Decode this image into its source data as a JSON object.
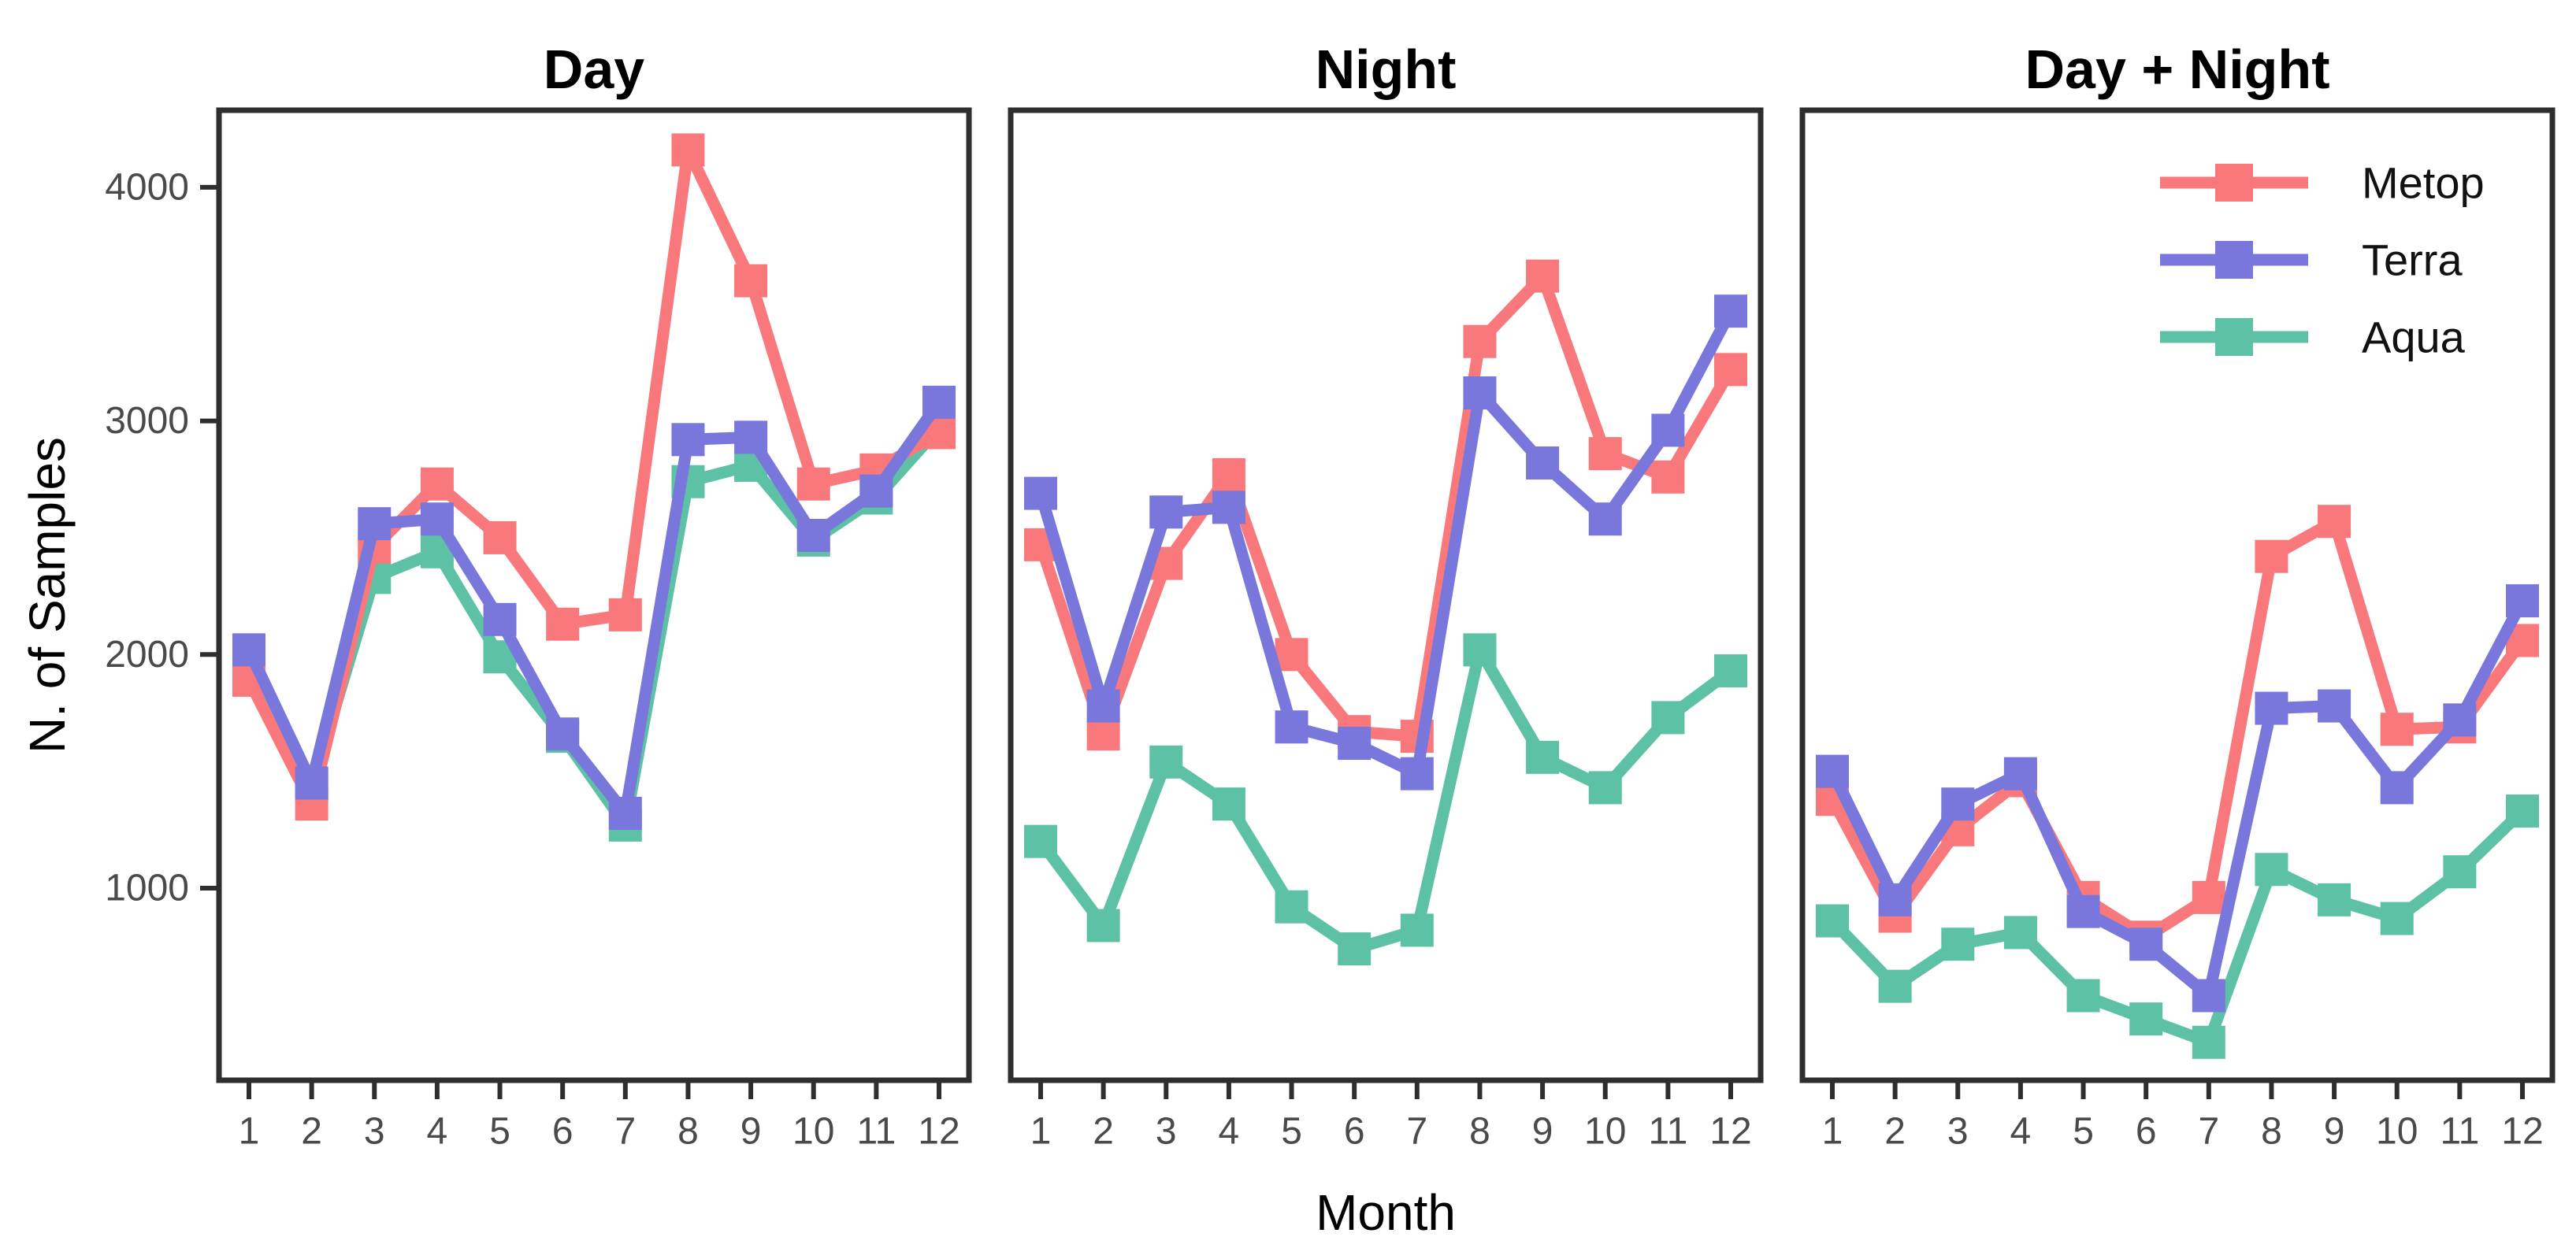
{
  "figure": {
    "background": "#FFFFFF",
    "ylabel": "N. of Samples",
    "xlabel": "Month",
    "panel_titles": [
      "Day",
      "Night",
      "Day + Night"
    ],
    "y_tick_labels": [
      "1000",
      "2000",
      "3000",
      "4000"
    ],
    "x_tick_labels": [
      "1",
      "2",
      "3",
      "4",
      "5",
      "6",
      "7",
      "8",
      "9",
      "10",
      "11",
      "12"
    ],
    "colors": {
      "metop": "#F8787C",
      "terra": "#7977DB",
      "aqua": "#5DC1A5",
      "frame": "#2E2E2E",
      "tick_text": "#4A4A4A",
      "label_text": "#000000"
    },
    "legend": {
      "position": "inside-top-right-of-third-panel",
      "items": [
        {
          "label": "Metop",
          "color": "#F8787C",
          "key_icon": "line-with-square-marker"
        },
        {
          "label": "Terra",
          "color": "#7977DB",
          "key_icon": "line-with-square-marker"
        },
        {
          "label": "Aqua",
          "color": "#5DC1A5",
          "key_icon": "line-with-square-marker"
        }
      ]
    }
  },
  "chart_data": [
    {
      "type": "line",
      "title": "Day",
      "xlabel": "Month",
      "ylabel": "N. of Samples",
      "x": [
        1,
        2,
        3,
        4,
        5,
        6,
        7,
        8,
        9,
        10,
        11,
        12
      ],
      "ylim": [
        180,
        4350
      ],
      "yticks": [
        1000,
        2000,
        3000,
        4000
      ],
      "grid": false,
      "marker": "square",
      "legend_position": "none",
      "draw_order": [
        "Aqua",
        "Metop",
        "Terra"
      ],
      "series": [
        {
          "name": "Metop",
          "color": "#F8787C",
          "values": [
            1890,
            1360,
            2460,
            2730,
            2500,
            2130,
            2170,
            4160,
            3600,
            2730,
            2790,
            2950
          ]
        },
        {
          "name": "Terra",
          "color": "#7977DB",
          "values": [
            2020,
            1450,
            2560,
            2580,
            2150,
            1660,
            1320,
            2920,
            2930,
            2510,
            2700,
            3080
          ]
        },
        {
          "name": "Aqua",
          "color": "#5DC1A5",
          "values": [
            1950,
            1440,
            2330,
            2440,
            1990,
            1650,
            1270,
            2740,
            2810,
            2490,
            2670,
            2970
          ]
        }
      ]
    },
    {
      "type": "line",
      "title": "Night",
      "xlabel": "Month",
      "ylabel": "N. of Samples",
      "x": [
        1,
        2,
        3,
        4,
        5,
        6,
        7,
        8,
        9,
        10,
        11,
        12
      ],
      "ylim": [
        180,
        4350
      ],
      "yticks": [
        1000,
        2000,
        3000,
        4000
      ],
      "grid": false,
      "marker": "square",
      "legend_position": "none",
      "draw_order": [
        "Aqua",
        "Metop",
        "Terra"
      ],
      "series": [
        {
          "name": "Metop",
          "color": "#F8787C",
          "values": [
            2470,
            1660,
            2390,
            2770,
            2000,
            1670,
            1650,
            3340,
            3620,
            2860,
            2760,
            3220
          ]
        },
        {
          "name": "Terra",
          "color": "#7977DB",
          "values": [
            2690,
            1780,
            2610,
            2630,
            1690,
            1620,
            1490,
            3120,
            2820,
            2580,
            2960,
            3470
          ]
        },
        {
          "name": "Aqua",
          "color": "#5DC1A5",
          "values": [
            1200,
            840,
            1540,
            1360,
            920,
            740,
            820,
            2020,
            1560,
            1430,
            1730,
            1930
          ]
        }
      ]
    },
    {
      "type": "line",
      "title": "Day + Night",
      "xlabel": "Month",
      "ylabel": "N. of Samples",
      "x": [
        1,
        2,
        3,
        4,
        5,
        6,
        7,
        8,
        9,
        10,
        11,
        12
      ],
      "ylim": [
        180,
        4350
      ],
      "yticks": [
        1000,
        2000,
        3000,
        4000
      ],
      "grid": false,
      "marker": "square",
      "legend_position": "top-right",
      "draw_order": [
        "Aqua",
        "Metop",
        "Terra"
      ],
      "series": [
        {
          "name": "Metop",
          "color": "#F8787C",
          "values": [
            1380,
            880,
            1250,
            1460,
            960,
            790,
            960,
            2420,
            2570,
            1680,
            1690,
            2060
          ]
        },
        {
          "name": "Terra",
          "color": "#7977DB",
          "values": [
            1500,
            950,
            1360,
            1490,
            900,
            760,
            540,
            1770,
            1780,
            1430,
            1720,
            2230
          ]
        },
        {
          "name": "Aqua",
          "color": "#5DC1A5",
          "values": [
            860,
            580,
            760,
            810,
            540,
            440,
            340,
            1080,
            950,
            870,
            1070,
            1330
          ]
        }
      ]
    }
  ]
}
